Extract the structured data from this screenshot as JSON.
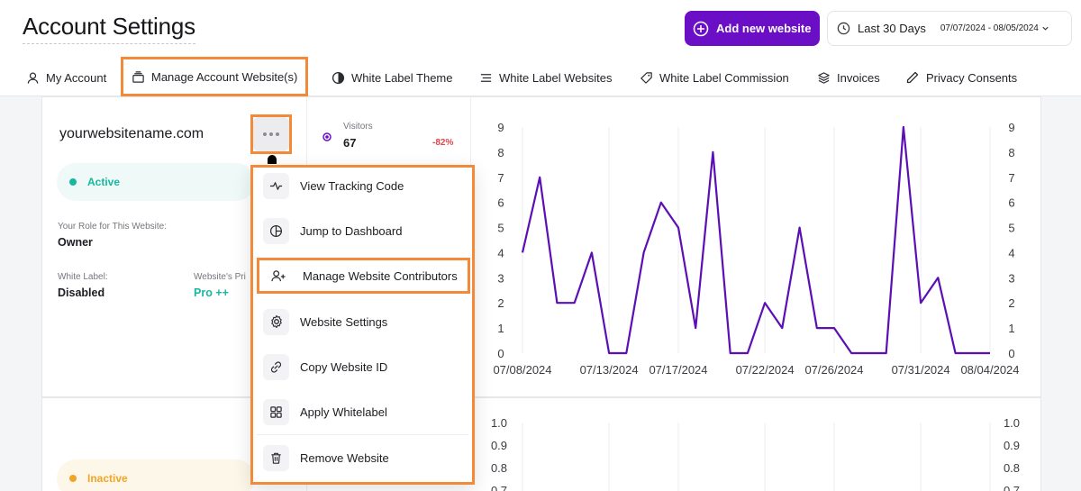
{
  "header": {
    "title": "Account Settings",
    "add_button_label": "Add new website",
    "date_range": {
      "label": "Last 30 Days",
      "dates": "07/07/2024 - 08/05/2024"
    }
  },
  "tabs": [
    {
      "label": "My Account",
      "icon": "user-icon"
    },
    {
      "label": "Manage Account Website(s)",
      "icon": "stack-icon",
      "selected": true
    },
    {
      "label": "White Label Theme",
      "icon": "contrast-icon"
    },
    {
      "label": "White Label Websites",
      "icon": "list-icon"
    },
    {
      "label": "White Label Commission",
      "icon": "tag-icon"
    },
    {
      "label": "Invoices",
      "icon": "layers-icon"
    },
    {
      "label": "Privacy Consents",
      "icon": "pen-icon"
    }
  ],
  "website_card": {
    "name": "yourwebsitename.com",
    "status": "Active",
    "role_label": "Your Role for This Website:",
    "role_value": "Owner",
    "white_label_label": "White Label:",
    "white_label_value": "Disabled",
    "plan_label": "Website's Pri",
    "plan_value": "Pro ++",
    "metric": {
      "label": "Visitors",
      "value": "67",
      "change": "-82%"
    }
  },
  "second_card": {
    "status": "Inactive"
  },
  "menu": {
    "items": [
      {
        "label": "View Tracking Code",
        "icon": "pulse-icon"
      },
      {
        "label": "Jump to Dashboard",
        "icon": "pie-chart-icon"
      },
      {
        "label": "Manage Website Contributors",
        "icon": "user-add-icon",
        "highlighted": true
      },
      {
        "label": "Website Settings",
        "icon": "gear-icon"
      },
      {
        "label": "Copy Website ID",
        "icon": "link-icon"
      },
      {
        "label": "Apply Whitelabel",
        "icon": "grid-icon"
      },
      {
        "label": "Remove Website",
        "icon": "trash-icon"
      }
    ]
  },
  "colors": {
    "accent": "#6b0fc7",
    "highlight_frame": "#f28a3a",
    "active": "#17b7a0",
    "inactive": "#f0a524",
    "negative": "#e0454a"
  },
  "chart_data": [
    {
      "type": "line",
      "x": [
        "07/08/2024",
        "07/09/2024",
        "07/10/2024",
        "07/11/2024",
        "07/12/2024",
        "07/13/2024",
        "07/14/2024",
        "07/15/2024",
        "07/16/2024",
        "07/17/2024",
        "07/18/2024",
        "07/19/2024",
        "07/20/2024",
        "07/21/2024",
        "07/22/2024",
        "07/23/2024",
        "07/24/2024",
        "07/25/2024",
        "07/26/2024",
        "07/27/2024",
        "07/28/2024",
        "07/29/2024",
        "07/30/2024",
        "07/31/2024",
        "08/01/2024",
        "08/02/2024",
        "08/03/2024",
        "08/04/2024"
      ],
      "series": [
        {
          "values": [
            4,
            7,
            2,
            2,
            4,
            0,
            0,
            4,
            6,
            5,
            1,
            8,
            0,
            0,
            2,
            1,
            5,
            1,
            1,
            0,
            0,
            0,
            9,
            2,
            3,
            0,
            0,
            0
          ],
          "color": "#5b0fb5"
        }
      ],
      "x_tick_labels": [
        "07/08/2024",
        "07/13/2024",
        "07/17/2024",
        "07/22/2024",
        "07/26/2024",
        "07/31/2024",
        "08/04/2024"
      ],
      "y_ticks": [
        "0",
        "1",
        "2",
        "3",
        "4",
        "5",
        "6",
        "7",
        "8",
        "9"
      ],
      "ylim": [
        0,
        9
      ],
      "grid": "vertical",
      "dual_axis": true
    },
    {
      "type": "line",
      "y_ticks": [
        "0.7",
        "0.8",
        "0.9",
        "1.0"
      ],
      "ylim": [
        0,
        1.0
      ],
      "grid": "vertical",
      "dual_axis": true
    }
  ]
}
